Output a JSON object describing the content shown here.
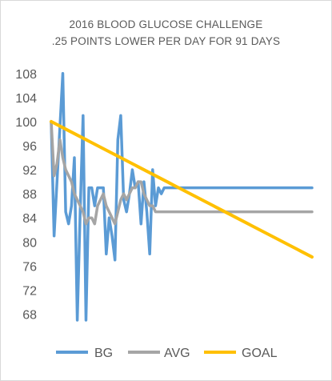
{
  "chart_data": {
    "type": "line",
    "title": "2016 BLOOD GLUCOSE CHALLENGE",
    "subtitle": ".25 POINTS LOWER PER DAY FOR 91 DAYS",
    "xlabel": "",
    "ylabel": "",
    "ylim": [
      67,
      108.5
    ],
    "yticks": [
      68,
      72,
      76,
      80,
      84,
      88,
      92,
      96,
      100,
      104,
      108
    ],
    "grid": false,
    "legend": "bottom",
    "series": [
      {
        "name": "BG",
        "color": "#5b9bd5",
        "values": [
          100,
          81,
          90,
          99,
          108,
          85,
          83,
          86,
          94,
          67,
          85,
          101,
          67,
          89,
          89,
          86,
          89,
          89,
          89,
          78,
          84,
          81,
          77,
          97,
          101,
          87,
          85,
          88,
          92,
          89,
          90,
          83,
          90,
          85,
          78,
          92,
          86,
          89,
          88,
          89,
          89,
          89,
          89,
          89,
          89,
          89,
          89,
          89,
          89,
          89,
          89,
          89,
          89,
          89,
          89,
          89,
          89,
          89,
          89,
          89,
          89,
          89,
          89,
          89,
          89,
          89,
          89,
          89,
          89,
          89,
          89,
          89,
          89,
          89,
          89,
          89,
          89,
          89,
          89,
          89,
          89,
          89,
          89,
          89,
          89,
          89,
          89,
          89,
          89,
          89,
          89
        ]
      },
      {
        "name": "AVG",
        "color": "#a5a5a5",
        "values": [
          100,
          91,
          93,
          97,
          94,
          92,
          91,
          90,
          88,
          87,
          86,
          85,
          83,
          84,
          84,
          83,
          86,
          87,
          88,
          86,
          85,
          84,
          83,
          85,
          87,
          88,
          87,
          88,
          89,
          89,
          90,
          90,
          88,
          87,
          86,
          86,
          85,
          85,
          85,
          85,
          85,
          85,
          85,
          85,
          85,
          85,
          85,
          85,
          85,
          85,
          85,
          85,
          85,
          85,
          85,
          85,
          85,
          85,
          85,
          85,
          85,
          85,
          85,
          85,
          85,
          85,
          85,
          85,
          85,
          85,
          85,
          85,
          85,
          85,
          85,
          85,
          85,
          85,
          85,
          85,
          85,
          85,
          85,
          85,
          85,
          85,
          85,
          85,
          85,
          85,
          85
        ]
      },
      {
        "name": "GOAL",
        "color": "#ffc000",
        "values": [
          100,
          99.75,
          99.5,
          99.25,
          99,
          98.75,
          98.5,
          98.25,
          98,
          97.75,
          97.5,
          97.25,
          97,
          96.75,
          96.5,
          96.25,
          96,
          95.75,
          95.5,
          95.25,
          95,
          94.75,
          94.5,
          94.25,
          94,
          93.75,
          93.5,
          93.25,
          93,
          92.75,
          92.5,
          92.25,
          92,
          91.75,
          91.5,
          91.25,
          91,
          90.75,
          90.5,
          90.25,
          90,
          89.75,
          89.5,
          89.25,
          89,
          88.75,
          88.5,
          88.25,
          88,
          87.75,
          87.5,
          87.25,
          87,
          86.75,
          86.5,
          86.25,
          86,
          85.75,
          85.5,
          85.25,
          85,
          84.75,
          84.5,
          84.25,
          84,
          83.75,
          83.5,
          83.25,
          83,
          82.75,
          82.5,
          82.25,
          82,
          81.75,
          81.5,
          81.25,
          81,
          80.75,
          80.5,
          80.25,
          80,
          79.75,
          79.5,
          79.25,
          79,
          78.75,
          78.5,
          78.25,
          78,
          77.75,
          77.5
        ]
      }
    ]
  }
}
